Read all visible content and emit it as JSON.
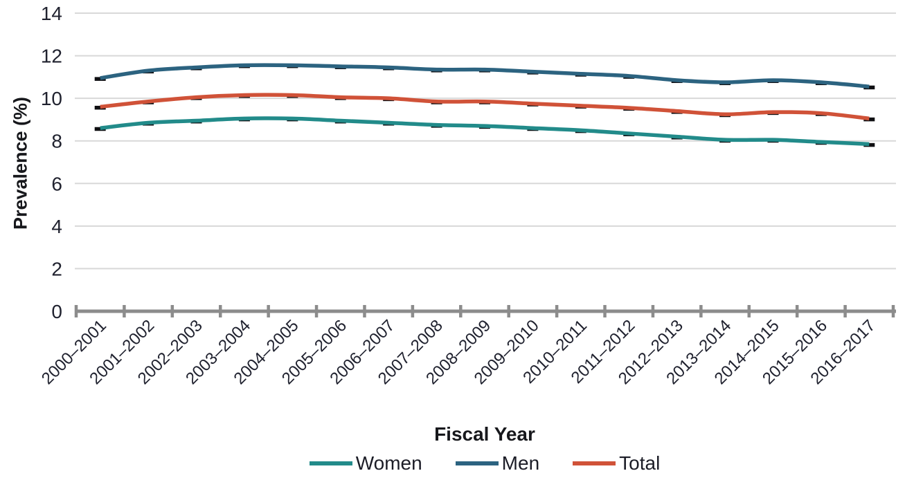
{
  "chart_data": {
    "type": "line",
    "title": "",
    "xlabel": "Fiscal Year",
    "ylabel": "Prevalence (%)",
    "ylim": [
      0,
      14
    ],
    "yticks": [
      0,
      2,
      4,
      6,
      8,
      10,
      12,
      14
    ],
    "grid": true,
    "legend_position": "bottom",
    "marker": "black-dash",
    "categories": [
      "2000–2001",
      "2001–2002",
      "2002–2003",
      "2003–2004",
      "2004–2005",
      "2005–2006",
      "2006–2007",
      "2007–2008",
      "2008–2009",
      "2009–2010",
      "2010–2011",
      "2011–2012",
      "2012–2013",
      "2013–2014",
      "2014–2015",
      "2015–2016",
      "2016–2017"
    ],
    "series": [
      {
        "name": "Women",
        "color": "#228b8a",
        "values": [
          8.6,
          8.85,
          8.95,
          9.05,
          9.05,
          8.95,
          8.85,
          8.75,
          8.7,
          8.6,
          8.5,
          8.35,
          8.2,
          8.05,
          8.05,
          7.95,
          7.85
        ]
      },
      {
        "name": "Men",
        "color": "#2c6380",
        "values": [
          10.95,
          11.3,
          11.45,
          11.55,
          11.55,
          11.5,
          11.45,
          11.35,
          11.35,
          11.25,
          11.15,
          11.05,
          10.85,
          10.75,
          10.85,
          10.75,
          10.55
        ]
      },
      {
        "name": "Total",
        "color": "#d05238",
        "values": [
          9.6,
          9.85,
          10.05,
          10.15,
          10.15,
          10.05,
          10.0,
          9.85,
          9.85,
          9.75,
          9.65,
          9.55,
          9.4,
          9.25,
          9.35,
          9.3,
          9.05
        ]
      }
    ],
    "style": {
      "grid_color": "#d8d8d8",
      "axis_color": "#8c8c8c",
      "marker_color": "#0f0f12",
      "tick_label_color": "#20222f"
    }
  }
}
